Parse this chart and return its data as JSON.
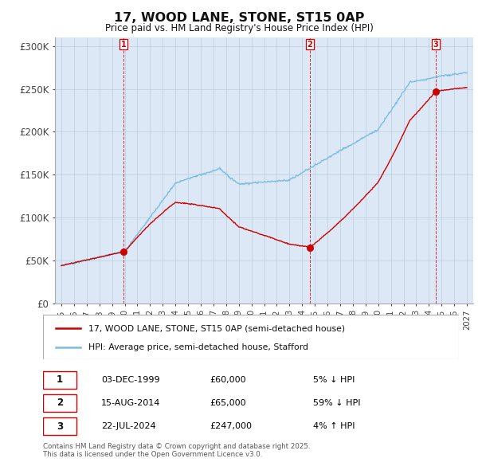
{
  "title": "17, WOOD LANE, STONE, ST15 0AP",
  "subtitle": "Price paid vs. HM Land Registry's House Price Index (HPI)",
  "ylim": [
    0,
    310000
  ],
  "yticks": [
    0,
    50000,
    100000,
    150000,
    200000,
    250000,
    300000
  ],
  "ytick_labels": [
    "£0",
    "£50K",
    "£100K",
    "£150K",
    "£200K",
    "£250K",
    "£300K"
  ],
  "hpi_color": "#7bbde0",
  "price_color": "#cc0000",
  "bg_color": "#dce8f5",
  "sale_points": [
    {
      "year": 1999.92,
      "price": 60000,
      "label": "1"
    },
    {
      "year": 2014.62,
      "price": 65000,
      "label": "2"
    },
    {
      "year": 2024.55,
      "price": 247000,
      "label": "3"
    }
  ],
  "legend_line1": "17, WOOD LANE, STONE, ST15 0AP (semi-detached house)",
  "legend_line2": "HPI: Average price, semi-detached house, Stafford",
  "table_rows": [
    {
      "num": "1",
      "date": "03-DEC-1999",
      "price": "£60,000",
      "hpi": "5% ↓ HPI"
    },
    {
      "num": "2",
      "date": "15-AUG-2014",
      "price": "£65,000",
      "hpi": "59% ↓ HPI"
    },
    {
      "num": "3",
      "date": "22-JUL-2024",
      "price": "£247,000",
      "hpi": "4% ↑ HPI"
    }
  ],
  "footnote": "Contains HM Land Registry data © Crown copyright and database right 2025.\nThis data is licensed under the Open Government Licence v3.0.",
  "xmin": 1994.5,
  "xmax": 2027.5
}
